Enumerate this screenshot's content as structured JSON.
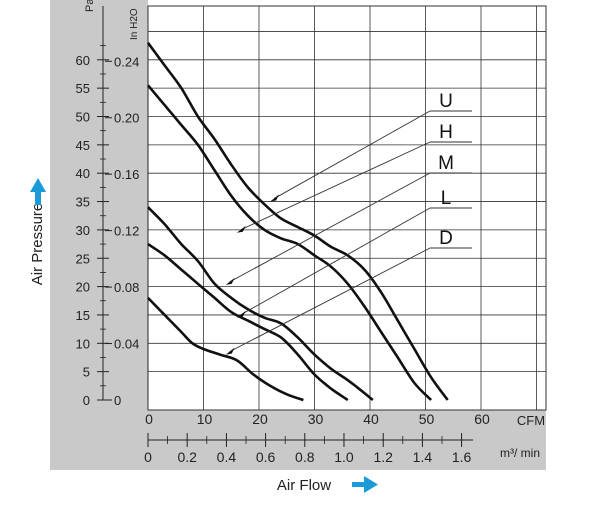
{
  "chart_data": {
    "type": "line",
    "title": "",
    "xlabel": "Air Flow",
    "ylabel": "Air Pressure",
    "x_unit": "CFM",
    "x2_unit": "m³/ min",
    "y_unit": "Pa",
    "y2_unit": "In H2O",
    "xlim": [
      0,
      72
    ],
    "ylim": [
      -1,
      72
    ],
    "x_ticks": [
      "0",
      "10",
      "20",
      "30",
      "40",
      "50",
      "60"
    ],
    "x_tick_values": [
      0,
      10,
      20,
      30,
      40,
      50,
      60
    ],
    "x2_ticks": [
      "0",
      "0.2",
      "0.4",
      "0.6",
      "0.8",
      "1.0",
      "1.2",
      "1.4",
      "1.6"
    ],
    "x2_tick_values": [
      0,
      7.06,
      14.13,
      21.19,
      28.25,
      35.31,
      42.38,
      49.44,
      56.5
    ],
    "y_ticks": [
      "0",
      "5",
      "10",
      "15",
      "20",
      "25",
      "30",
      "35",
      "40",
      "45",
      "50",
      "55",
      "60"
    ],
    "y_tick_values": [
      0,
      5,
      10,
      15,
      20,
      25,
      30,
      35,
      40,
      45,
      50,
      55,
      60
    ],
    "y2_ticks": [
      "0",
      "0.04",
      "0.08",
      "0.12",
      "0.16",
      "0.20",
      "0.24"
    ],
    "y2_tick_values": [
      0,
      9.96,
      19.91,
      29.87,
      39.83,
      49.78,
      59.74
    ],
    "grid": true,
    "series": [
      {
        "name": "U",
        "x": [
          0,
          3,
          6,
          9,
          12,
          15,
          18,
          21,
          24,
          27,
          30,
          33,
          36,
          39,
          42,
          45,
          48,
          51,
          54
        ],
        "y": [
          63,
          59,
          55,
          50,
          46,
          41.5,
          37.5,
          34.5,
          32,
          30.5,
          29,
          27,
          25.5,
          23,
          19,
          14,
          9,
          4,
          0
        ]
      },
      {
        "name": "H",
        "x": [
          0,
          3,
          6,
          9,
          12,
          15,
          18,
          21,
          24,
          27,
          30,
          33,
          36,
          39,
          42,
          45,
          48,
          51
        ],
        "y": [
          55.5,
          52,
          48.5,
          45,
          40.5,
          36,
          32.5,
          30,
          28.5,
          27.5,
          25.5,
          23.5,
          20.5,
          16.5,
          12,
          7.5,
          3,
          0
        ]
      },
      {
        "name": "M",
        "x": [
          0,
          3,
          6,
          9,
          12,
          15,
          18,
          21,
          24,
          27,
          30,
          33,
          36,
          38,
          40.5
        ],
        "y": [
          34,
          31,
          27.5,
          24.5,
          20.5,
          18,
          16,
          14.5,
          13.5,
          11,
          8,
          5.5,
          3.5,
          2,
          0
        ]
      },
      {
        "name": "L",
        "x": [
          0,
          3,
          6,
          9,
          12,
          15,
          18,
          21,
          24,
          27,
          30,
          33,
          36
        ],
        "y": [
          27.5,
          25.5,
          23,
          20.5,
          18,
          15.5,
          14,
          12.5,
          11,
          8,
          4.5,
          2,
          0
        ]
      },
      {
        "name": "D",
        "x": [
          0,
          2,
          4,
          6,
          8,
          10,
          13,
          16,
          19,
          22,
          25,
          28
        ],
        "y": [
          18,
          16,
          14,
          12,
          10,
          9,
          8,
          7,
          4.5,
          2.5,
          1,
          0
        ]
      }
    ],
    "series_labels": [
      "U",
      "H",
      "M",
      "L",
      "D"
    ],
    "legend_placement": "top-right"
  }
}
